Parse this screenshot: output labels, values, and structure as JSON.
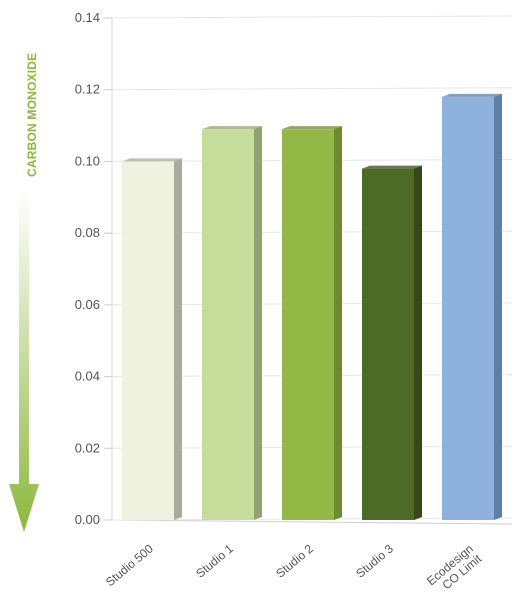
{
  "chart_data": {
    "type": "bar",
    "ylabel": "CARBON MONOXIDE",
    "categories": [
      [
        "Studio 500"
      ],
      [
        "Studio 1"
      ],
      [
        "Studio 2"
      ],
      [
        "Studio 3"
      ],
      [
        "Ecodesign",
        "CO Limit"
      ]
    ],
    "values": [
      0.1,
      0.109,
      0.109,
      0.098,
      0.118
    ],
    "ylim": [
      0,
      0.14
    ],
    "yticks": [
      "0.00",
      "0.02",
      "0.04",
      "0.06",
      "0.08",
      "0.10",
      "0.12",
      "0.14"
    ],
    "grid": true,
    "legend": "none",
    "bar_colors": [
      "#eef2de",
      "#c5dc9a",
      "#93b846",
      "#4e6a27",
      "#8eb2dd"
    ],
    "bar_side_colors": [
      "#a9ab9c",
      "#93a274",
      "#6b8a31",
      "#34481a",
      "#5e7fa8"
    ],
    "arrow_colors": [
      "#ffffff",
      "#8cb83c"
    ]
  }
}
